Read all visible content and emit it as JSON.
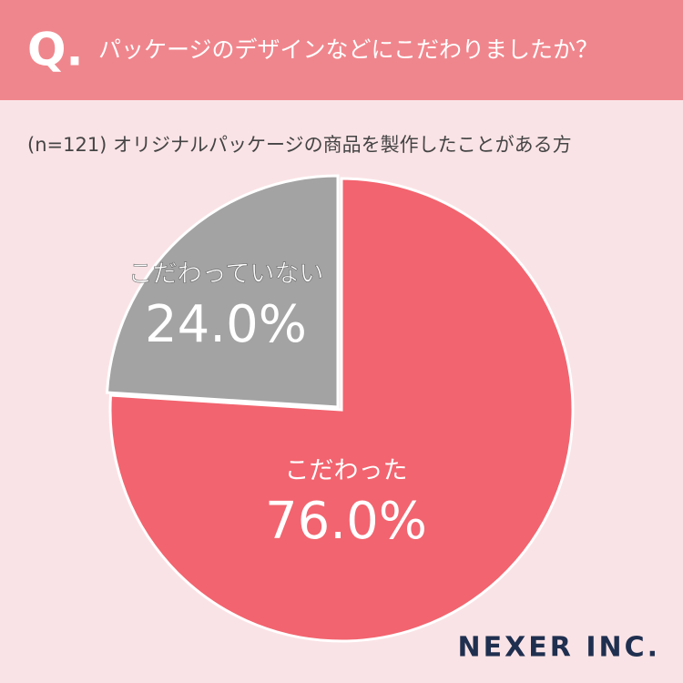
{
  "question_mark": "Q.",
  "brand": "NEXER INC.",
  "chart_data": {
    "type": "pie",
    "title": "パッケージのデザインなどにこだわりましたか？",
    "subtitle": "(n=121) オリジナルパッケージの商品を製作したことがある方",
    "categories": [
      "こだわった",
      "こだわっていない"
    ],
    "values": [
      76.0,
      24.0
    ],
    "value_labels": [
      "76.0%",
      "24.0%"
    ],
    "colors": [
      "#f2646f",
      "#a3a3a3"
    ]
  }
}
